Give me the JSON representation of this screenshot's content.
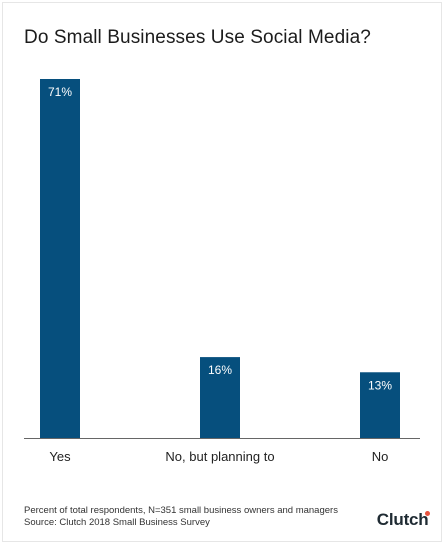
{
  "chart_data": {
    "type": "bar",
    "title": "Do Small Businesses Use Social Media?",
    "categories": [
      "Yes",
      "No, but planning to",
      "No"
    ],
    "values": [
      71,
      16,
      13
    ],
    "value_labels": [
      "71%",
      "16%",
      "13%"
    ],
    "xlabel": "",
    "ylabel": "",
    "ylim": [
      0,
      71
    ],
    "grid": false,
    "bar_color": "#064f7d",
    "label_color": "#ffffff",
    "baseline_color": "#666666"
  },
  "footer": {
    "note": "Percent of total respondents, N=351 small business owners and managers",
    "source": "Source: Clutch 2018 Small Business Survey"
  },
  "logo": {
    "text": "Clutch",
    "accent_color": "#e8543f"
  }
}
